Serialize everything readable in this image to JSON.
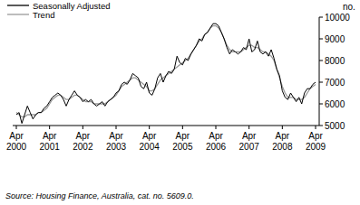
{
  "chart_data": {
    "type": "line",
    "y_label": "no.",
    "source": "Source: Housing Finance, Australia, cat. no. 5609.0.",
    "legend": "top-left",
    "grid": false,
    "categories": [
      "Apr 2000",
      null,
      null,
      null,
      null,
      null,
      null,
      null,
      null,
      null,
      null,
      null,
      "Apr 2001",
      null,
      null,
      null,
      null,
      null,
      null,
      null,
      null,
      null,
      null,
      null,
      "Apr 2002",
      null,
      null,
      null,
      null,
      null,
      null,
      null,
      null,
      null,
      null,
      null,
      "Apr 2003",
      null,
      null,
      null,
      null,
      null,
      null,
      null,
      null,
      null,
      null,
      null,
      "Apr 2004",
      null,
      null,
      null,
      null,
      null,
      null,
      null,
      null,
      null,
      null,
      null,
      "Apr 2005",
      null,
      null,
      null,
      null,
      null,
      null,
      null,
      null,
      null,
      null,
      null,
      "Apr 2006",
      null,
      null,
      null,
      null,
      null,
      null,
      null,
      null,
      null,
      null,
      null,
      "Apr 2007",
      null,
      null,
      null,
      null,
      null,
      null,
      null,
      null,
      null,
      null,
      null,
      "Apr 2008",
      null,
      null,
      null,
      null,
      null,
      null,
      null,
      null,
      null,
      null,
      null,
      "Apr 2009"
    ],
    "ylim": [
      5000,
      10000
    ],
    "yticks": [
      5000,
      6000,
      7000,
      8000,
      9000,
      10000
    ],
    "series": [
      {
        "name": "Seasonally Adjusted",
        "color": "#000000",
        "values": [
          5500,
          5600,
          5100,
          5500,
          5900,
          5600,
          5300,
          5500,
          5600,
          5600,
          5800,
          5900,
          6100,
          6300,
          6400,
          6500,
          6400,
          6200,
          5900,
          6200,
          6400,
          6600,
          6400,
          6300,
          6100,
          6200,
          6100,
          6200,
          6000,
          5900,
          6000,
          6100,
          5900,
          6100,
          6200,
          6300,
          6500,
          6600,
          6900,
          7000,
          6900,
          7100,
          7400,
          7300,
          7200,
          6800,
          6700,
          7000,
          6500,
          6400,
          6700,
          7200,
          7400,
          7000,
          7300,
          7500,
          7400,
          7600,
          8200,
          7900,
          7800,
          8100,
          8000,
          8300,
          8500,
          8700,
          9000,
          8900,
          9200,
          9300,
          9500,
          9700,
          9700,
          9600,
          9300,
          9000,
          8600,
          8300,
          8500,
          8400,
          8300,
          8400,
          8600,
          8500,
          9000,
          8400,
          8500,
          8900,
          8400,
          8300,
          8400,
          8200,
          8500,
          8100,
          7600,
          7300,
          6600,
          6300,
          6200,
          6500,
          6300,
          6100,
          6300,
          6000,
          6500,
          6700,
          6700,
          6900,
          7000
        ]
      },
      {
        "name": "Trend",
        "color": "#999999",
        "values": [
          5600,
          5500,
          5400,
          5400,
          5500,
          5500,
          5500,
          5500,
          5600,
          5600,
          5700,
          5800,
          6000,
          6200,
          6300,
          6400,
          6400,
          6300,
          6200,
          6200,
          6300,
          6400,
          6400,
          6300,
          6200,
          6100,
          6100,
          6100,
          6000,
          6000,
          6000,
          6000,
          6000,
          6100,
          6200,
          6300,
          6400,
          6600,
          6800,
          6900,
          7000,
          7100,
          7200,
          7200,
          7100,
          7000,
          6900,
          6800,
          6600,
          6600,
          6700,
          6900,
          7100,
          7200,
          7300,
          7400,
          7500,
          7600,
          7700,
          7800,
          7900,
          8000,
          8100,
          8300,
          8500,
          8700,
          8900,
          9000,
          9200,
          9300,
          9500,
          9600,
          9600,
          9500,
          9300,
          9000,
          8700,
          8500,
          8400,
          8400,
          8400,
          8400,
          8500,
          8600,
          8700,
          8700,
          8600,
          8600,
          8500,
          8400,
          8400,
          8300,
          8200,
          8000,
          7600,
          7200,
          6800,
          6500,
          6300,
          6300,
          6300,
          6200,
          6200,
          6200,
          6300,
          6500,
          6700,
          6800,
          6900
        ]
      }
    ]
  }
}
